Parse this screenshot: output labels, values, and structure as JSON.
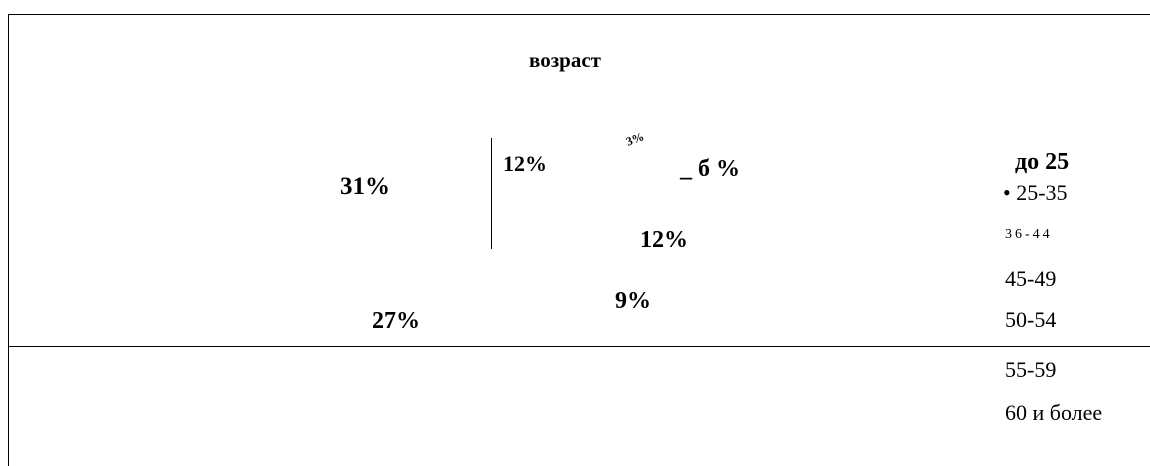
{
  "title": "возраст",
  "labels": [
    "31%",
    "12%",
    "3%",
    "_ б %",
    "12%",
    "9%",
    "27%"
  ],
  "legend": [
    "до 25",
    "• 25-35",
    "36-44",
    "45-49",
    "50-54",
    "55-59",
    "60 и более"
  ]
}
